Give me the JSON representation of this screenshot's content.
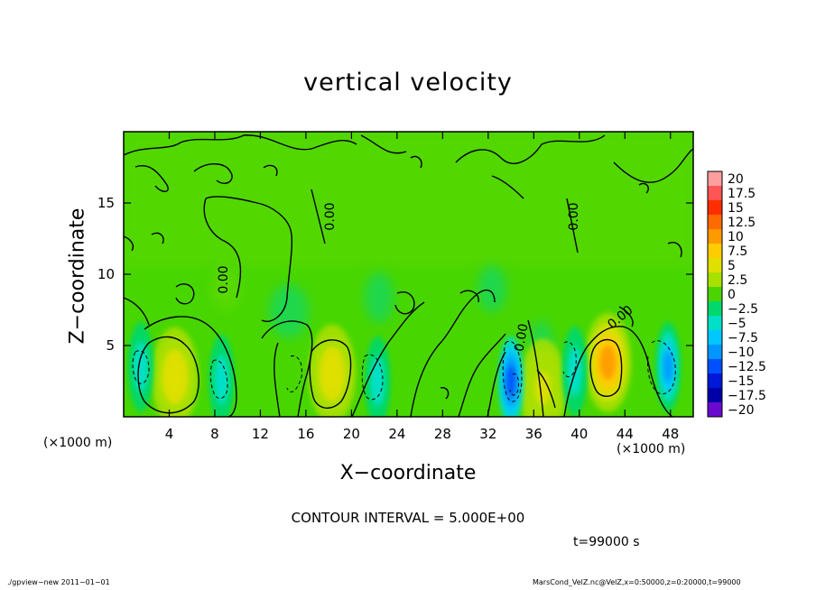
{
  "chart_data": {
    "type": "heatmap",
    "title": "vertical velocity",
    "xlabel": "X−coordinate",
    "ylabel": "Z−coordinate",
    "x_unit_left": "(×1000 m)",
    "x_unit_right": "(×1000 m)",
    "xlim": [
      0,
      50
    ],
    "ylim": [
      0,
      20
    ],
    "x_ticks": [
      "4",
      "8",
      "12",
      "16",
      "20",
      "24",
      "28",
      "32",
      "36",
      "40",
      "44",
      "48"
    ],
    "x_tick_values": [
      4,
      8,
      12,
      16,
      20,
      24,
      28,
      32,
      36,
      40,
      44,
      48
    ],
    "y_ticks": [
      "5",
      "10",
      "15"
    ],
    "y_tick_values": [
      5,
      10,
      15
    ],
    "colorbar": {
      "labels": [
        "20",
        "17.5",
        "15",
        "12.5",
        "10",
        "7.5",
        "5",
        "2.5",
        "0",
        "−2.5",
        "−5",
        "−7.5",
        "−10",
        "−12.5",
        "−15",
        "−17.5",
        "−20"
      ],
      "colors": [
        "#ff9e9e",
        "#ff5555",
        "#ff2d00",
        "#ff6a00",
        "#ff9900",
        "#ffcc00",
        "#e0e000",
        "#a8e000",
        "#4cd400",
        "#00d86b",
        "#00e0c8",
        "#00c8ff",
        "#0096ff",
        "#0050ff",
        "#0018d8",
        "#0000a8",
        "#6a0ad0"
      ]
    },
    "contour_labels": [
      "0.00",
      "0.00",
      "0.00",
      "0.00",
      "0.00"
    ],
    "updraft_cores": [
      {
        "x": 4.5,
        "z": 2.8,
        "w": 6
      },
      {
        "x": 18.3,
        "z": 3.0,
        "w": 5
      },
      {
        "x": 42.5,
        "z": 3.8,
        "w": 9
      },
      {
        "x": 36.8,
        "z": 2.0,
        "w": 4
      }
    ],
    "downdraft_cores": [
      {
        "x": 1.5,
        "z": 3.5,
        "w": -6
      },
      {
        "x": 8.6,
        "z": 2.6,
        "w": -6
      },
      {
        "x": 22.3,
        "z": 2.5,
        "w": -6
      },
      {
        "x": 34.0,
        "z": 2.5,
        "w": -12
      },
      {
        "x": 39.6,
        "z": 3.2,
        "w": -6
      },
      {
        "x": 47.8,
        "z": 3.5,
        "w": -9
      }
    ]
  },
  "contour_interval": "CONTOUR INTERVAL = 5.000E+00",
  "time_label": "t=99000  s",
  "footer_left": "./gpview−new   2011−01−01",
  "footer_right": "MarsCond_VelZ.nc@VelZ,x=0:50000,z=0:20000,t=99000"
}
